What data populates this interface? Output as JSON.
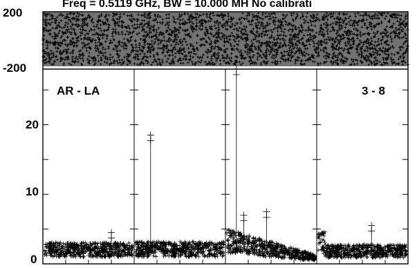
{
  "chart_data": {
    "type": "scatter",
    "title": "Freq = 0.5119 GHz, BW = 10.000 MH  No calibrati",
    "marker": "+",
    "color": "#000000",
    "baseline_label": "AR - LA",
    "antenna_pair": "3 - 8",
    "panels": 4,
    "phase_panel": {
      "ylim": [
        -200,
        200
      ],
      "y_tick_labels": [
        "200",
        "-200"
      ],
      "fill": "dense noise band spanning full range"
    },
    "amplitude_panel": {
      "ylim": [
        0,
        28
      ],
      "y_ticks": [
        0,
        10,
        20
      ],
      "y_tick_labels": [
        "0",
        "10",
        "20"
      ],
      "spikes": [
        {
          "panel": 2,
          "y": 18.5
        },
        {
          "panel": 3,
          "y": 7.5
        },
        {
          "panel": 3,
          "y": 28
        },
        {
          "panel": 3,
          "y": 7.0
        },
        {
          "panel": 4,
          "y": 5.5
        },
        {
          "panel": 1,
          "y": 4.5
        }
      ],
      "noise_level": [
        {
          "panel": 1,
          "level": 2.8
        },
        {
          "panel": 2,
          "level": 2.9
        },
        {
          "panel": 3,
          "level": 3.6
        },
        {
          "panel": 4,
          "level": 2.5
        }
      ]
    }
  }
}
